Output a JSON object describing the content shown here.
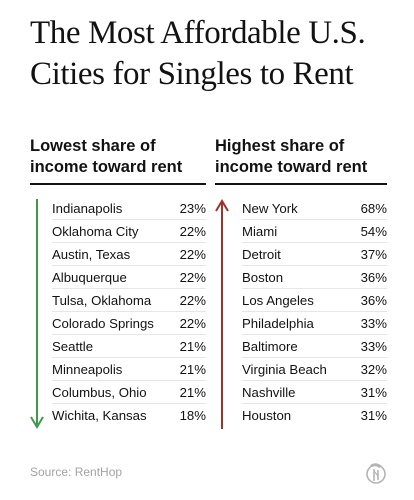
{
  "title": "The Most Affordable U.S. Cities for Singles to Rent",
  "source": "Source: RentHop",
  "colors": {
    "lowest_arrow": "#3e9a4a",
    "highest_arrow": "#a1312b",
    "text": "#121212",
    "source": "#a3a3a3"
  },
  "chart_data": [
    {
      "type": "table",
      "title": "Lowest share of income toward rent",
      "arrow_direction": "down",
      "rows": [
        {
          "city": "Indianapolis",
          "value": "23%"
        },
        {
          "city": "Oklahoma City",
          "value": "22%"
        },
        {
          "city": "Austin, Texas",
          "value": "22%"
        },
        {
          "city": "Albuquerque",
          "value": "22%"
        },
        {
          "city": "Tulsa, Oklahoma",
          "value": "22%"
        },
        {
          "city": "Colorado Springs",
          "value": "22%"
        },
        {
          "city": "Seattle",
          "value": "21%"
        },
        {
          "city": "Minneapolis",
          "value": "21%"
        },
        {
          "city": "Columbus, Ohio",
          "value": "21%"
        },
        {
          "city": "Wichita, Kansas",
          "value": "18%"
        }
      ]
    },
    {
      "type": "table",
      "title": "Highest share of income toward rent",
      "arrow_direction": "up",
      "rows": [
        {
          "city": "New York",
          "value": "68%"
        },
        {
          "city": "Miami",
          "value": "54%"
        },
        {
          "city": "Detroit",
          "value": "37%"
        },
        {
          "city": "Boston",
          "value": "36%"
        },
        {
          "city": "Los Angeles",
          "value": "36%"
        },
        {
          "city": "Philadelphia",
          "value": "33%"
        },
        {
          "city": "Baltimore",
          "value": "33%"
        },
        {
          "city": "Virginia Beach",
          "value": "32%"
        },
        {
          "city": "Nashville",
          "value": "31%"
        },
        {
          "city": "Houston",
          "value": "31%"
        }
      ]
    }
  ]
}
